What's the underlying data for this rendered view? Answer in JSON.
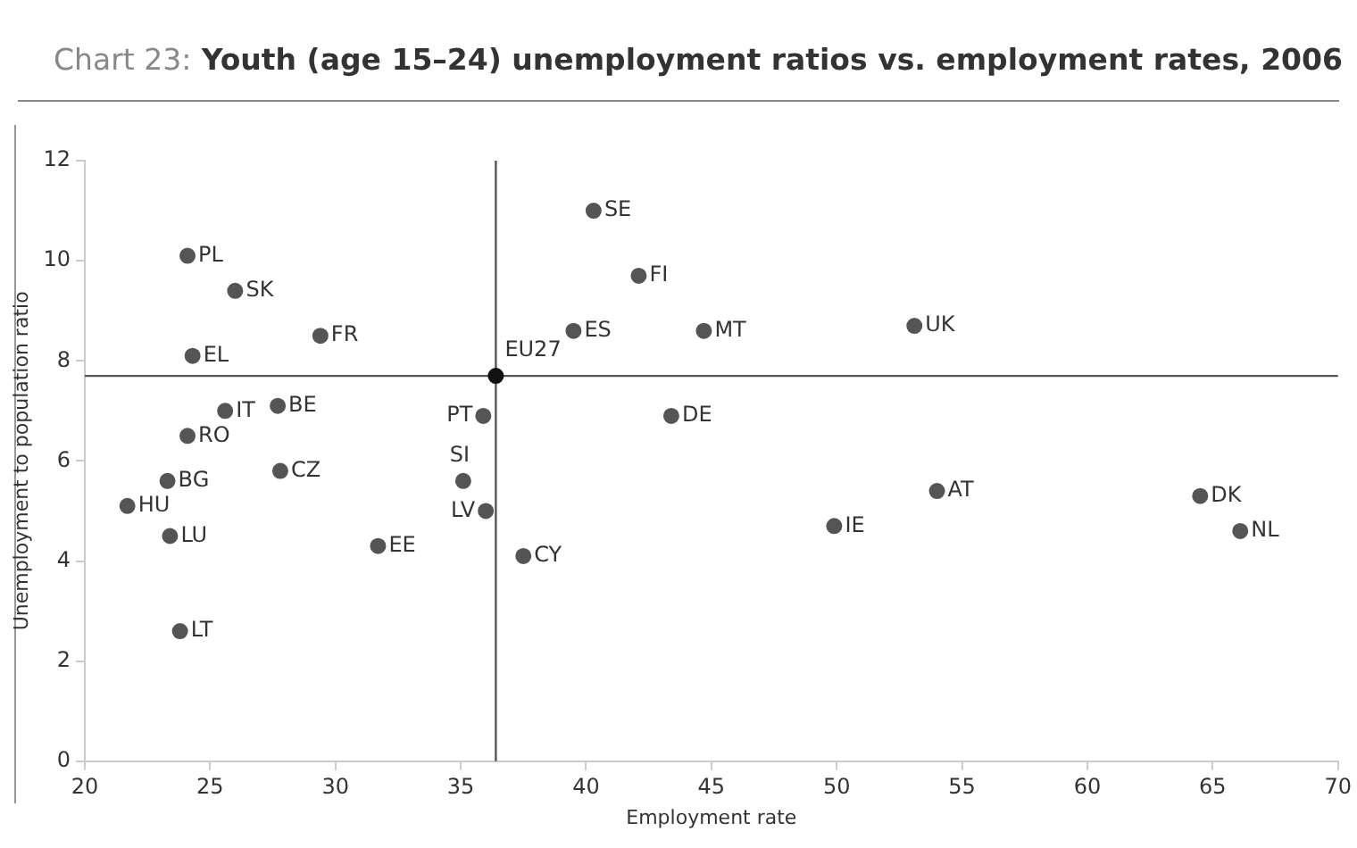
{
  "chart_data": {
    "type": "scatter",
    "title": "Chart 23: Youth (age 15–24) unemployment ratios vs. employment rates, 2006",
    "xlabel": "Employment rate",
    "ylabel": "Unemployment to population ratio",
    "series": [
      {
        "color": "#555555",
        "marker": "circle",
        "x": [
          24.1,
          26.0,
          29.4,
          24.3,
          25.6,
          27.7,
          24.1,
          27.8,
          23.3,
          21.7,
          23.4,
          23.8,
          31.7,
          35.9,
          35.1,
          36.0,
          37.5,
          40.3,
          42.1,
          39.5,
          44.7,
          43.4,
          49.9,
          53.1,
          54.0,
          64.5,
          66.1
        ],
        "values": [
          10.1,
          9.4,
          8.5,
          8.1,
          7.0,
          7.1,
          6.5,
          5.8,
          5.6,
          5.1,
          4.5,
          2.6,
          4.3,
          6.9,
          5.6,
          5.0,
          4.1,
          11.0,
          9.7,
          8.6,
          8.6,
          6.9,
          4.7,
          8.7,
          5.4,
          5.3,
          4.6
        ],
        "value_labels": [
          "PL",
          "SK",
          "FR",
          "EL",
          "IT",
          "BE",
          "RO",
          "CZ",
          "BG",
          "HU",
          "LU",
          "LT",
          "EE",
          "PT",
          "SI",
          "LV",
          "CY",
          "SE",
          "FI",
          "ES",
          "MT",
          "DE",
          "IE",
          "UK",
          "AT",
          "DK",
          "NL"
        ]
      },
      {
        "color": "#111111",
        "marker": "circle",
        "x": [
          36.4
        ],
        "values": [
          7.7
        ],
        "value_labels": [
          "EU27"
        ]
      }
    ],
    "ref_lines": [
      {
        "axis": "x",
        "value": 36.4,
        "color": "#555555"
      },
      {
        "axis": "y",
        "value": 7.7,
        "color": "#555555"
      }
    ],
    "xlim": [
      20,
      70
    ],
    "xticks": [
      20,
      25,
      30,
      35,
      40,
      45,
      50,
      55,
      60,
      65,
      70
    ],
    "ylim": [
      0,
      12
    ],
    "yticks": [
      0,
      2,
      4,
      6,
      8,
      10,
      12
    ],
    "grid": false,
    "legend": false
  }
}
